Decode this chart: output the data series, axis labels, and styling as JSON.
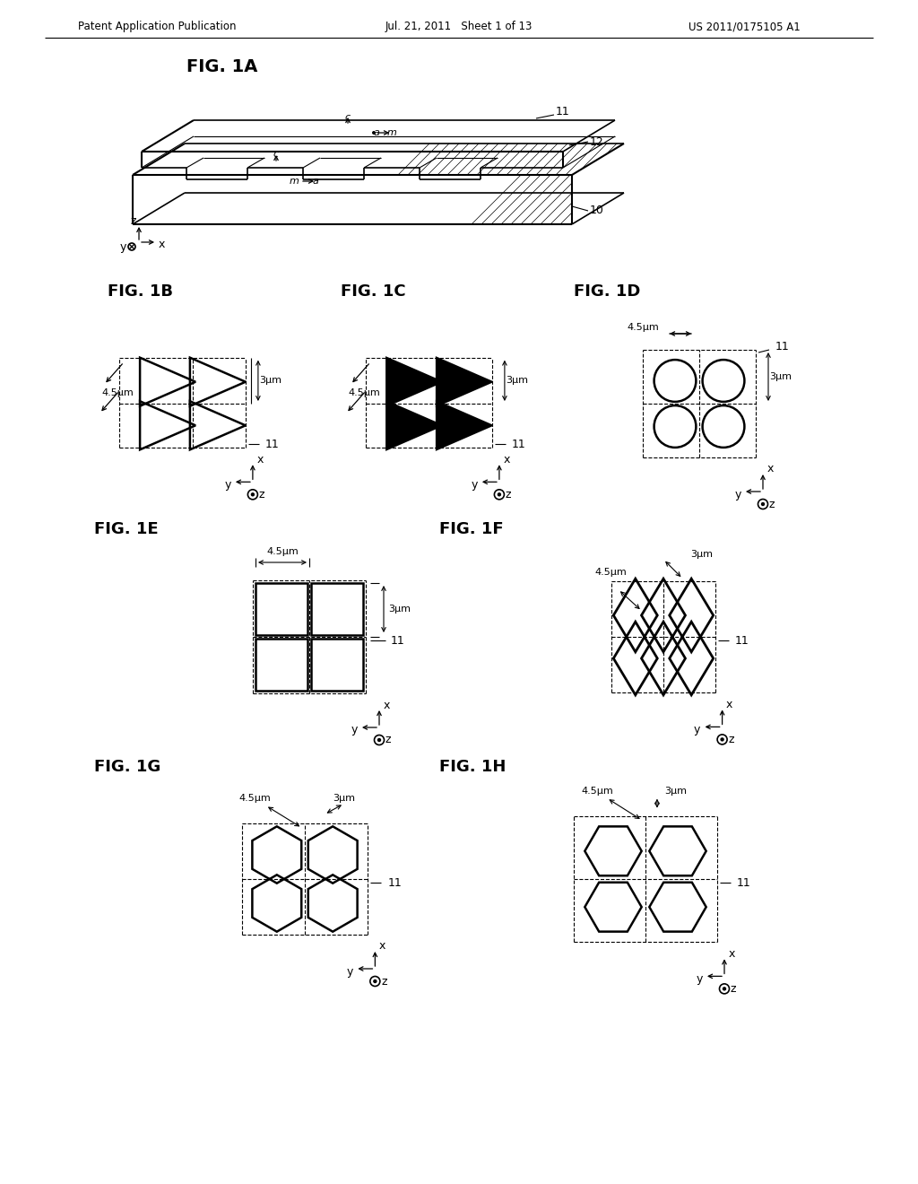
{
  "header_left": "Patent Application Publication",
  "header_mid": "Jul. 21, 2011   Sheet 1 of 13",
  "header_right": "US 2011/0175105 A1",
  "bg_color": "#ffffff",
  "lc": "#000000"
}
